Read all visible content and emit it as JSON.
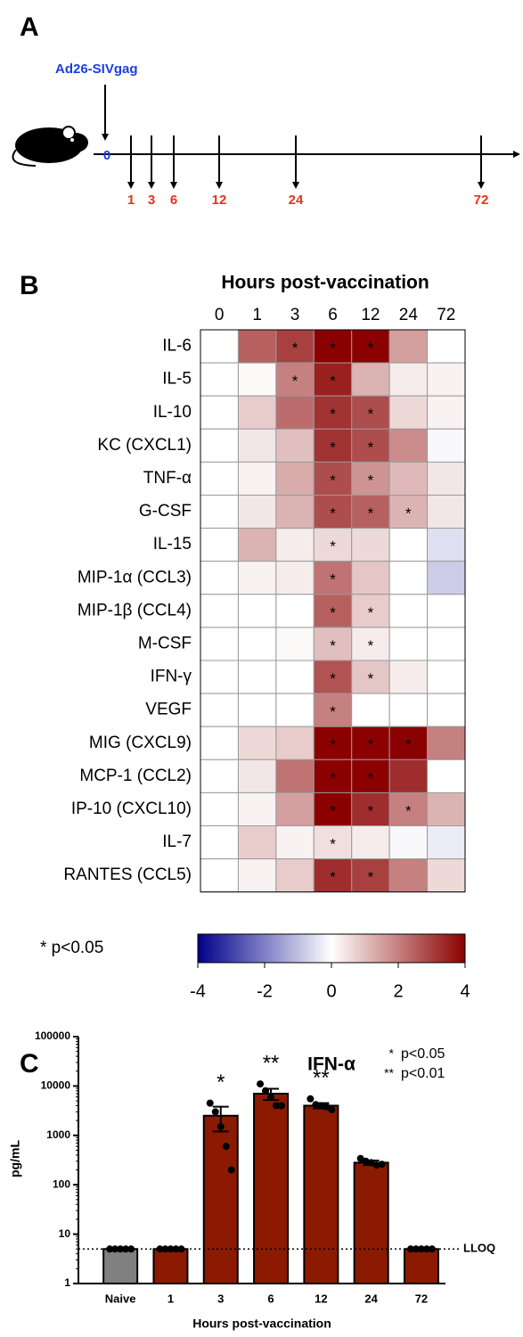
{
  "panel_a": {
    "label": "A",
    "vaccine": "Ad26-SIVgag",
    "start": 0,
    "timepoints": [
      1,
      3,
      6,
      12,
      24,
      72
    ]
  },
  "chart_data": [
    {
      "type": "heatmap",
      "panel_label": "B",
      "title": "Hours post-vaccination",
      "categories": [
        "0",
        "1",
        "3",
        "6",
        "12",
        "24",
        "72"
      ],
      "rows": [
        "IL-6",
        "IL-5",
        "IL-10",
        "KC (CXCL1)",
        "TNF-α",
        "G-CSF",
        "IL-15",
        "MIP-1α (CCL3)",
        "MIP-1β (CCL4)",
        "M-CSF",
        "IFN-γ",
        "VEGF",
        "MIG (CXCL9)",
        "MCP-1 (CCL2)",
        "IP-10 (CXCL10)",
        "IL-7",
        "RANTES (CCL5)"
      ],
      "values": [
        [
          0,
          2.5,
          3,
          4,
          4,
          1.5,
          0
        ],
        [
          0,
          0.1,
          2,
          3.5,
          1.2,
          0.3,
          0.2
        ],
        [
          0,
          0.8,
          2.3,
          3.2,
          2.8,
          0.6,
          0.2
        ],
        [
          0,
          0.4,
          1,
          3.2,
          2.8,
          1.8,
          -0.1
        ],
        [
          0,
          0.2,
          1.3,
          2.8,
          1.7,
          1.1,
          0.4
        ],
        [
          0,
          0.4,
          1.2,
          2.8,
          2.5,
          1.2,
          0.4
        ],
        [
          0,
          1.2,
          0.3,
          0.6,
          0.6,
          0,
          -0.5
        ],
        [
          0,
          0.2,
          0.3,
          2.2,
          0.9,
          0,
          -0.8
        ],
        [
          0,
          0,
          0,
          2.5,
          0.8,
          0,
          0
        ],
        [
          0,
          0,
          0.1,
          1,
          0.3,
          0,
          0
        ],
        [
          0,
          0,
          0,
          2.7,
          0.9,
          0.3,
          0
        ],
        [
          0,
          0,
          0,
          2,
          0,
          0,
          0
        ],
        [
          0,
          0.6,
          0.8,
          4,
          4,
          4,
          2
        ],
        [
          0,
          0.4,
          2.2,
          4,
          4,
          3.3,
          0
        ],
        [
          0,
          0.2,
          1.5,
          4,
          3.3,
          2,
          1.2
        ],
        [
          0,
          0.8,
          0.2,
          0.5,
          0.3,
          -0.1,
          -0.3
        ],
        [
          0,
          0.2,
          0.8,
          3.3,
          3,
          2,
          0.6
        ]
      ],
      "annotations": [
        [
          null,
          null,
          "*",
          "*",
          "*",
          null,
          null
        ],
        [
          null,
          null,
          "*",
          "*",
          null,
          null,
          null
        ],
        [
          null,
          null,
          null,
          "*",
          "*",
          null,
          null
        ],
        [
          null,
          null,
          null,
          "*",
          "*",
          null,
          null
        ],
        [
          null,
          null,
          null,
          "*",
          "*",
          null,
          null
        ],
        [
          null,
          null,
          null,
          "*",
          "*",
          "*",
          null
        ],
        [
          null,
          null,
          null,
          "*",
          null,
          null,
          null
        ],
        [
          null,
          null,
          null,
          "*",
          null,
          null,
          null
        ],
        [
          null,
          null,
          null,
          "*",
          "*",
          null,
          null
        ],
        [
          null,
          null,
          null,
          "*",
          "*",
          null,
          null
        ],
        [
          null,
          null,
          null,
          "*",
          "*",
          null,
          null
        ],
        [
          null,
          null,
          null,
          "*",
          null,
          null,
          null
        ],
        [
          null,
          null,
          null,
          "*",
          "*",
          "*",
          null
        ],
        [
          null,
          null,
          null,
          "*",
          "*",
          null,
          null
        ],
        [
          null,
          null,
          null,
          "*",
          "*",
          "*",
          null
        ],
        [
          null,
          null,
          null,
          "*",
          null,
          null,
          null
        ],
        [
          null,
          null,
          null,
          "*",
          "*",
          null,
          null
        ]
      ],
      "significance_note": "* p<0.05",
      "colorscale": [
        "#00008b",
        "#ffffff",
        "#8b0000"
      ],
      "zlim": [
        -4,
        4
      ],
      "zticks": [
        -4,
        -2,
        0,
        2,
        4
      ]
    },
    {
      "type": "bar",
      "panel_label": "C",
      "title": "IFN-α",
      "categories": [
        "Naive",
        "1",
        "3",
        "6",
        "12",
        "24",
        "72"
      ],
      "values": [
        5,
        5,
        2500,
        7000,
        4000,
        280,
        5
      ],
      "errors": [
        0,
        0,
        1300,
        1800,
        500,
        30,
        0
      ],
      "colors": [
        "#808080",
        "#8b1a00",
        "#8b1a00",
        "#8b1a00",
        "#8b1a00",
        "#8b1a00",
        "#8b1a00"
      ],
      "points": [
        [
          5,
          5,
          5,
          5,
          5
        ],
        [
          5,
          5,
          5,
          5,
          5
        ],
        [
          4500,
          3000,
          1500,
          600,
          200
        ],
        [
          11000,
          8000,
          6000,
          4000,
          4000
        ],
        [
          5500,
          4200,
          4000,
          3800,
          3300
        ],
        [
          340,
          300,
          280,
          250,
          260
        ],
        [
          5,
          5,
          5,
          5,
          5
        ]
      ],
      "annotations": [
        null,
        null,
        "*",
        "**",
        "**",
        null,
        null
      ],
      "significance_legend": [
        {
          "symbol": "*",
          "text": "p<0.05"
        },
        {
          "symbol": "**",
          "text": "p<0.01"
        }
      ],
      "reference_line": {
        "value": 5,
        "label": "LLOQ"
      },
      "xlabel": "Hours post-vaccination",
      "ylabel": "pg/mL",
      "log_scale": true,
      "ylim": [
        1,
        100000
      ],
      "yticks": [
        1,
        10,
        100,
        1000,
        10000,
        100000
      ]
    }
  ]
}
